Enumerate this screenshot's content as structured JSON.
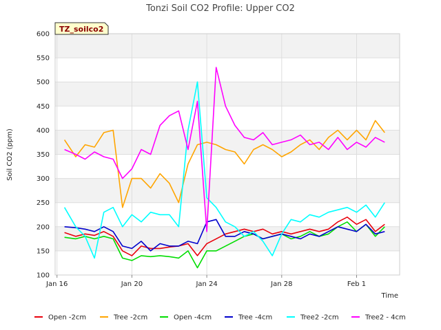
{
  "chart_data": {
    "type": "line",
    "title": "Tonzi Soil CO2 Profile: Upper CO2",
    "badge": "TZ_soilco2",
    "xlabel": "Time",
    "ylabel": "Soil CO2 (ppm)",
    "ylim": [
      100,
      600
    ],
    "yticks": [
      100,
      150,
      200,
      250,
      300,
      350,
      400,
      450,
      500,
      550,
      600
    ],
    "xlim_day": [
      15.9,
      34.3
    ],
    "xticks": [
      {
        "day": 16,
        "label": "Jan 16"
      },
      {
        "day": 20,
        "label": "Jan 20"
      },
      {
        "day": 24,
        "label": "Jan 24"
      },
      {
        "day": 28,
        "label": "Jan 28"
      },
      {
        "day": 32,
        "label": "Feb 1"
      }
    ],
    "grid": true,
    "legend_position": "bottom",
    "x_day": [
      16.4,
      17.0,
      17.5,
      18.0,
      18.5,
      19.0,
      19.5,
      20.0,
      20.5,
      21.0,
      21.5,
      22.0,
      22.5,
      23.0,
      23.5,
      24.0,
      24.5,
      25.0,
      25.5,
      26.0,
      26.5,
      27.0,
      27.5,
      28.0,
      28.5,
      29.0,
      29.5,
      30.0,
      30.5,
      31.0,
      31.5,
      32.0,
      32.5,
      33.0,
      33.5
    ],
    "series": [
      {
        "name": "Open -2cm",
        "color": "#e8000b",
        "values": [
          188,
          180,
          185,
          182,
          190,
          180,
          150,
          140,
          160,
          155,
          155,
          158,
          160,
          165,
          140,
          165,
          175,
          185,
          190,
          195,
          190,
          195,
          185,
          190,
          185,
          190,
          195,
          190,
          195,
          210,
          220,
          205,
          215,
          190,
          205
        ]
      },
      {
        "name": "Tree -2cm",
        "color": "#ffa500",
        "values": [
          380,
          345,
          370,
          365,
          395,
          400,
          240,
          300,
          300,
          280,
          310,
          290,
          250,
          330,
          370,
          375,
          370,
          360,
          355,
          330,
          360,
          370,
          360,
          345,
          355,
          370,
          380,
          360,
          385,
          400,
          380,
          400,
          380,
          420,
          395
        ]
      },
      {
        "name": "Open -4cm",
        "color": "#00dd00",
        "values": [
          178,
          175,
          180,
          175,
          180,
          175,
          135,
          130,
          140,
          138,
          140,
          138,
          135,
          150,
          115,
          150,
          150,
          160,
          170,
          180,
          185,
          175,
          180,
          185,
          175,
          180,
          190,
          180,
          185,
          200,
          210,
          190,
          205,
          180,
          200
        ]
      },
      {
        "name": "Tree -4cm",
        "color": "#0000cc",
        "values": [
          200,
          198,
          195,
          190,
          200,
          190,
          160,
          155,
          170,
          150,
          165,
          160,
          160,
          170,
          165,
          210,
          215,
          180,
          180,
          190,
          185,
          175,
          180,
          185,
          180,
          175,
          185,
          180,
          190,
          200,
          195,
          190,
          205,
          185,
          190
        ]
      },
      {
        "name": "Tree2 -2cm",
        "color": "#00ffff",
        "values": [
          240,
          200,
          180,
          135,
          230,
          240,
          200,
          225,
          210,
          230,
          225,
          225,
          200,
          400,
          500,
          260,
          240,
          210,
          200,
          180,
          190,
          170,
          140,
          185,
          215,
          210,
          225,
          220,
          230,
          235,
          240,
          230,
          245,
          220,
          250
        ]
      },
      {
        "name": "Tree2 - 4cm",
        "color": "#ff00ff",
        "values": [
          360,
          350,
          340,
          355,
          345,
          340,
          300,
          320,
          360,
          350,
          410,
          430,
          440,
          360,
          460,
          190,
          530,
          450,
          410,
          385,
          380,
          395,
          370,
          375,
          380,
          390,
          370,
          375,
          360,
          385,
          360,
          375,
          365,
          385,
          375
        ]
      }
    ]
  }
}
